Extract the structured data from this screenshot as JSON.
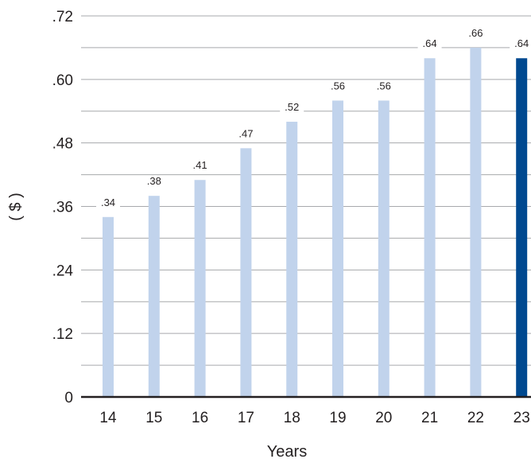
{
  "chart_data": {
    "type": "bar",
    "categories": [
      "14",
      "15",
      "16",
      "17",
      "18",
      "19",
      "20",
      "21",
      "22",
      "23"
    ],
    "values": [
      0.34,
      0.38,
      0.41,
      0.47,
      0.52,
      0.56,
      0.56,
      0.64,
      0.66,
      0.64
    ],
    "data_labels": [
      ".34",
      ".38",
      ".41",
      ".47",
      ".52",
      ".56",
      ".56",
      ".64",
      ".66",
      ".64"
    ],
    "y_tick_values": [
      0,
      0.12,
      0.24,
      0.36,
      0.48,
      0.6,
      0.72
    ],
    "y_tick_labels": [
      "0",
      ".12",
      ".24",
      ".36",
      ".48",
      ".60",
      ".72"
    ],
    "xlabel": "Years",
    "ylabel": "( $ )",
    "ylim": [
      0,
      0.72
    ],
    "grid": true,
    "colors": {
      "bar": "#c1d3ec",
      "highlight_bar": "#004990",
      "grid": "#a7a9ac",
      "axis": "#231f20",
      "text": "#231f20"
    },
    "highlight_index": 9
  }
}
